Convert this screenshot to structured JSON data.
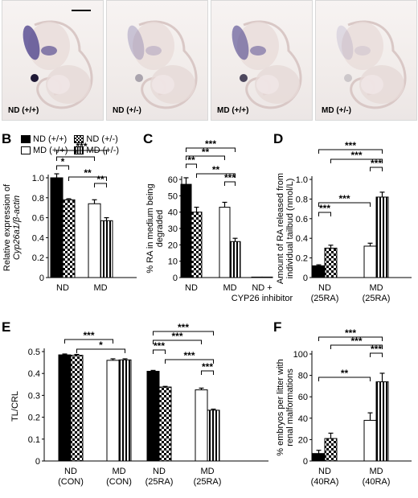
{
  "panel_letters": {
    "a": "A",
    "b": "B",
    "c": "C",
    "d": "D",
    "e": "E",
    "f": "F"
  },
  "photos": [
    {
      "label": "ND (+/+)",
      "staining": 0.9,
      "has_scale_bar": true
    },
    {
      "label": "ND (+/-)",
      "staining": 0.3,
      "has_scale_bar": false
    },
    {
      "label": "MD (+/+)",
      "staining": 0.7,
      "has_scale_bar": false
    },
    {
      "label": "MD (+/-)",
      "staining": 0.15,
      "has_scale_bar": false
    }
  ],
  "legend": {
    "items": [
      {
        "label": "ND (+/+)",
        "pattern": "solid"
      },
      {
        "label": "ND (+/-)",
        "pattern": "checker"
      },
      {
        "label": "MD (+/+)",
        "pattern": "open"
      },
      {
        "label": "MD (+/-)",
        "pattern": "vstripe"
      }
    ]
  },
  "colors": {
    "bar_solid": "#000000",
    "bar_open": "#ffffff",
    "axis": "#000000"
  },
  "chart_data": [
    {
      "id": "B",
      "type": "bar",
      "ylabel_lines": [
        "Relative expression of",
        "Cyp26a1/β-actin"
      ],
      "ylim": [
        0,
        1.0
      ],
      "yticks": [
        "0",
        "0.2",
        "0.4",
        "0.6",
        "0.8",
        "1.0"
      ],
      "groups": [
        {
          "label_lines": [
            "ND"
          ],
          "bars": [
            {
              "pattern": "solid",
              "value": 1.0,
              "err": 0.04
            },
            {
              "pattern": "checker",
              "value": 0.78,
              "err": 0.01
            }
          ]
        },
        {
          "label_lines": [
            "MD"
          ],
          "bars": [
            {
              "pattern": "open",
              "value": 0.74,
              "err": 0.04
            },
            {
              "pattern": "vstripe",
              "value": 0.57,
              "err": 0.03
            }
          ]
        }
      ],
      "significance": [
        {
          "from": [
            0,
            0
          ],
          "to": [
            1,
            1
          ],
          "stars": "***"
        },
        {
          "from": [
            0,
            0
          ],
          "to": [
            1,
            0
          ],
          "stars": "*"
        },
        {
          "from": [
            0,
            0
          ],
          "to": [
            0,
            1
          ],
          "stars": "*"
        },
        {
          "from": [
            0,
            1
          ],
          "to": [
            1,
            1
          ],
          "stars": "**"
        },
        {
          "from": [
            1,
            0
          ],
          "to": [
            1,
            1
          ],
          "stars": "**"
        }
      ]
    },
    {
      "id": "C",
      "type": "bar",
      "ylabel_lines": [
        "% RA in medium being",
        "degraded"
      ],
      "ylim": [
        0,
        60
      ],
      "yticks": [
        "0",
        "10",
        "20",
        "30",
        "40",
        "50",
        "60"
      ],
      "groups": [
        {
          "label_lines": [
            "ND"
          ],
          "bars": [
            {
              "pattern": "solid",
              "value": 57,
              "err": 4
            },
            {
              "pattern": "checker",
              "value": 40,
              "err": 3
            }
          ]
        },
        {
          "label_lines": [
            "MD"
          ],
          "bars": [
            {
              "pattern": "open",
              "value": 43,
              "err": 3
            },
            {
              "pattern": "vstripe",
              "value": 22,
              "err": 2
            }
          ]
        },
        {
          "label_lines": [
            "ND +",
            "CYP26 inhibitor"
          ],
          "bars": [
            {
              "pattern": "solid",
              "value": 0.3,
              "err": 0
            },
            {
              "pattern": "solid",
              "value": 0.3,
              "err": 0
            }
          ]
        }
      ],
      "significance": [
        {
          "from": [
            0,
            0
          ],
          "to": [
            1,
            1
          ],
          "stars": "***"
        },
        {
          "from": [
            0,
            0
          ],
          "to": [
            1,
            0
          ],
          "stars": "**"
        },
        {
          "from": [
            0,
            0
          ],
          "to": [
            0,
            1
          ],
          "stars": "**"
        },
        {
          "from": [
            0,
            1
          ],
          "to": [
            1,
            1
          ],
          "stars": "**"
        },
        {
          "from": [
            1,
            0
          ],
          "to": [
            1,
            1
          ],
          "stars": "***"
        }
      ]
    },
    {
      "id": "D",
      "type": "bar",
      "ylabel_lines": [
        "Amount of RA released from",
        "individual tailbud (nmol/L)"
      ],
      "ylim": [
        0,
        1.0
      ],
      "yticks": [
        "0",
        "0.2",
        "0.4",
        "0.6",
        "0.8",
        "1.0"
      ],
      "groups": [
        {
          "label_lines": [
            "ND",
            "(25RA)"
          ],
          "bars": [
            {
              "pattern": "solid",
              "value": 0.12,
              "err": 0.01
            },
            {
              "pattern": "checker",
              "value": 0.3,
              "err": 0.03
            }
          ]
        },
        {
          "label_lines": [
            "MD",
            "(25RA)"
          ],
          "bars": [
            {
              "pattern": "open",
              "value": 0.32,
              "err": 0.03
            },
            {
              "pattern": "vstripe",
              "value": 0.82,
              "err": 0.05
            }
          ]
        }
      ],
      "significance": [
        {
          "from": [
            0,
            0
          ],
          "to": [
            1,
            1
          ],
          "stars": "***"
        },
        {
          "from": [
            0,
            1
          ],
          "to": [
            1,
            1
          ],
          "stars": "***"
        },
        {
          "from": [
            1,
            0
          ],
          "to": [
            1,
            1
          ],
          "stars": "***"
        },
        {
          "from": [
            0,
            0
          ],
          "to": [
            1,
            0
          ],
          "stars": "***"
        },
        {
          "from": [
            0,
            0
          ],
          "to": [
            0,
            1
          ],
          "stars": "***"
        }
      ]
    },
    {
      "id": "E",
      "type": "bar",
      "ylabel_lines": [
        "TL/CRL"
      ],
      "ylim": [
        0,
        0.5
      ],
      "yticks": [
        "0",
        "0.1",
        "0.2",
        "0.3",
        "0.4",
        "0.5"
      ],
      "groups": [
        {
          "label_lines": [
            "ND",
            "(CON)"
          ],
          "bars": [
            {
              "pattern": "solid",
              "value": 0.485,
              "err": 0.004
            },
            {
              "pattern": "checker",
              "value": 0.483,
              "err": 0.004
            }
          ]
        },
        {
          "label_lines": [
            "MD",
            "(CON)"
          ],
          "bars": [
            {
              "pattern": "open",
              "value": 0.46,
              "err": 0.007
            },
            {
              "pattern": "vstripe",
              "value": 0.462,
              "err": 0.005
            }
          ]
        },
        {
          "label_lines": [
            "ND",
            "(25RA)"
          ],
          "bars": [
            {
              "pattern": "solid",
              "value": 0.41,
              "err": 0.004
            },
            {
              "pattern": "checker",
              "value": 0.338,
              "err": 0.003
            }
          ]
        },
        {
          "label_lines": [
            "MD",
            "(25RA)"
          ],
          "bars": [
            {
              "pattern": "open",
              "value": 0.325,
              "err": 0.008
            },
            {
              "pattern": "vstripe",
              "value": 0.232,
              "err": 0.005
            }
          ]
        }
      ],
      "significance": [
        {
          "from": [
            0,
            0
          ],
          "to": [
            1,
            0
          ],
          "stars": "***"
        },
        {
          "from": [
            0,
            1
          ],
          "to": [
            1,
            1
          ],
          "stars": "*"
        },
        {
          "from": [
            2,
            0
          ],
          "to": [
            3,
            1
          ],
          "stars": "***"
        },
        {
          "from": [
            2,
            0
          ],
          "to": [
            3,
            0
          ],
          "stars": "***"
        },
        {
          "from": [
            2,
            0
          ],
          "to": [
            2,
            1
          ],
          "stars": "***"
        },
        {
          "from": [
            2,
            1
          ],
          "to": [
            3,
            1
          ],
          "stars": "***"
        },
        {
          "from": [
            3,
            0
          ],
          "to": [
            3,
            1
          ],
          "stars": "***"
        }
      ]
    },
    {
      "id": "F",
      "type": "bar",
      "ylabel_lines": [
        "% embryos per litter with",
        "renal malformations"
      ],
      "ylim": [
        0,
        100
      ],
      "yticks": [
        "0",
        "20",
        "40",
        "60",
        "80",
        "100"
      ],
      "groups": [
        {
          "label_lines": [
            "ND",
            "(40RA)"
          ],
          "bars": [
            {
              "pattern": "solid",
              "value": 7,
              "err": 3
            },
            {
              "pattern": "checker",
              "value": 21,
              "err": 5
            }
          ]
        },
        {
          "label_lines": [
            "MD",
            "(40RA)"
          ],
          "bars": [
            {
              "pattern": "open",
              "value": 38,
              "err": 7
            },
            {
              "pattern": "vstripe",
              "value": 74,
              "err": 8
            }
          ]
        }
      ],
      "significance": [
        {
          "from": [
            0,
            0
          ],
          "to": [
            1,
            1
          ],
          "stars": "***"
        },
        {
          "from": [
            0,
            1
          ],
          "to": [
            1,
            1
          ],
          "stars": "***"
        },
        {
          "from": [
            1,
            0
          ],
          "to": [
            1,
            1
          ],
          "stars": "***"
        },
        {
          "from": [
            0,
            0
          ],
          "to": [
            1,
            0
          ],
          "stars": "**"
        }
      ]
    }
  ]
}
